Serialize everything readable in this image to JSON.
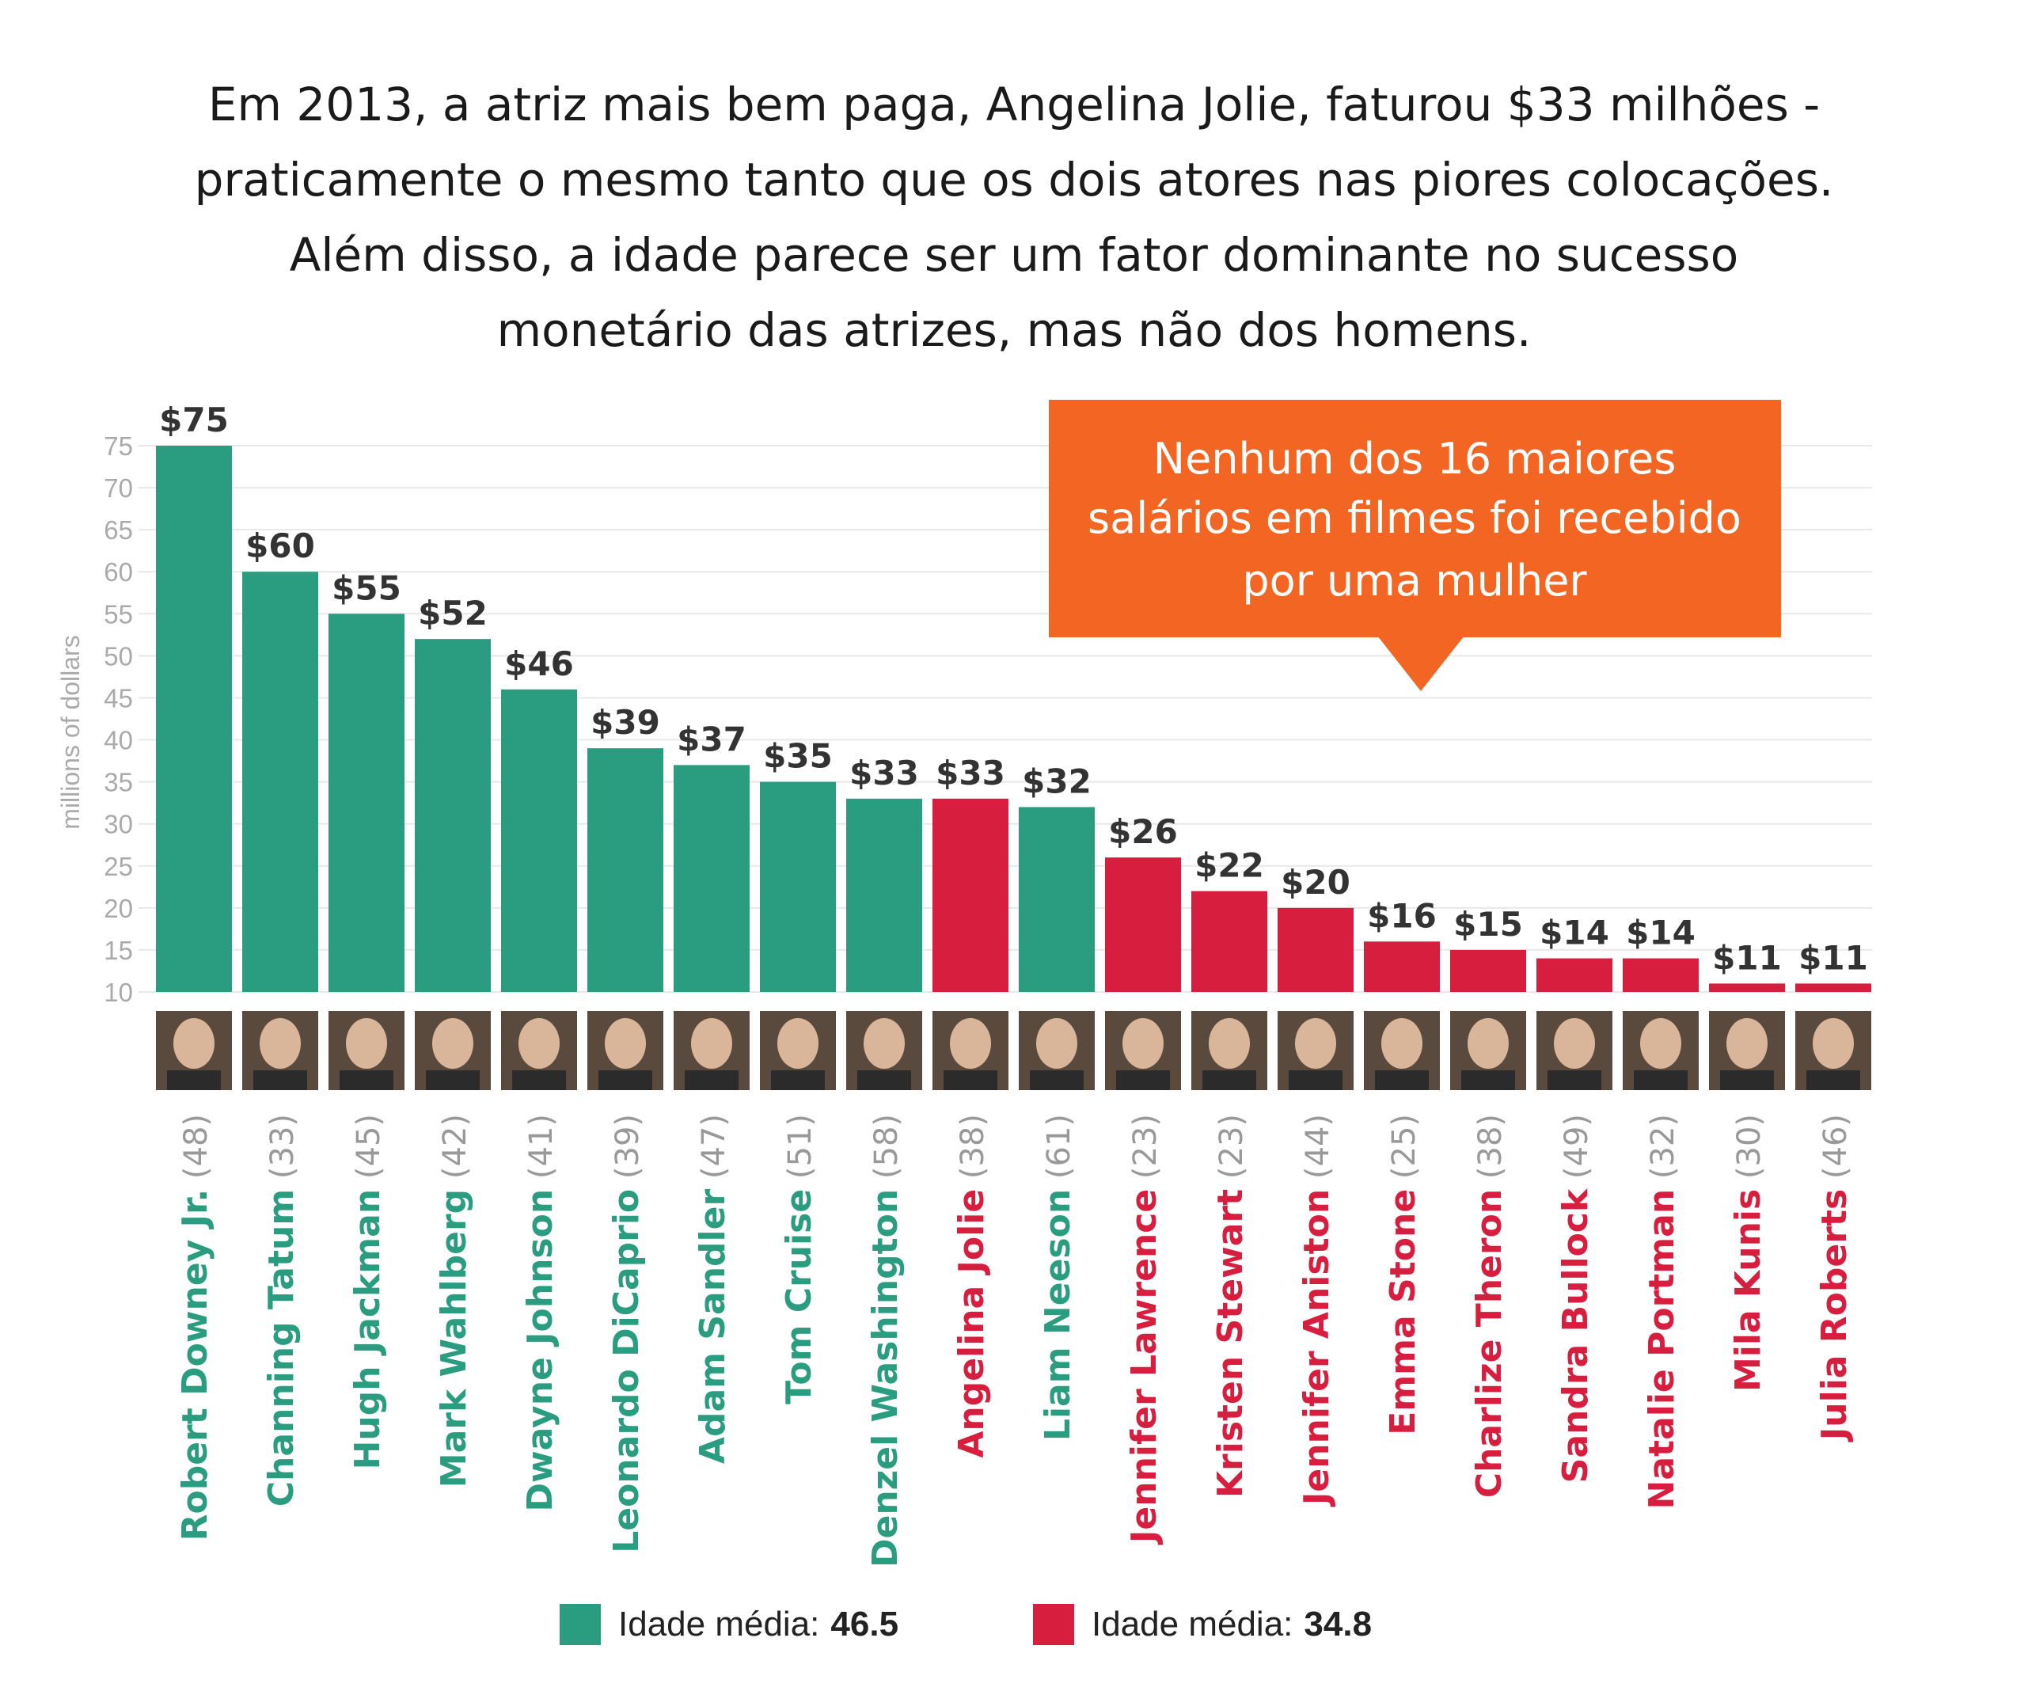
{
  "title_lines": [
    "Em 2013, a atriz mais bem paga, Angelina Jolie, faturou $33 milhões -",
    "praticamente o mesmo tanto que os dois atores nas piores colocações.",
    "Além disso, a idade parece ser um fator dominante no sucesso",
    "monetário das atrizes, mas não dos homens."
  ],
  "callout": {
    "lines": [
      "Nenhum dos 16 maiores",
      "salários em filmes foi recebido",
      "por uma mulher"
    ],
    "color": "#f26522"
  },
  "colors": {
    "male": "#2a9d80",
    "female": "#d81e3f",
    "age": "#999999",
    "grid": "#e8e8e8",
    "axis": "#aaaaaa"
  },
  "legend": [
    {
      "label": "Idade média:",
      "value": "46.5",
      "group": "male"
    },
    {
      "label": "Idade média:",
      "value": "34.8",
      "group": "female"
    }
  ],
  "chart_data": {
    "type": "bar",
    "ylabel": "millions of dollars",
    "ylim": [
      10,
      75
    ],
    "yticks": [
      75,
      70,
      65,
      60,
      55,
      50,
      45,
      40,
      35,
      30,
      25,
      20,
      15,
      10
    ],
    "bars": [
      {
        "name": "Robert Downey Jr.",
        "age": "(48)",
        "value": 75,
        "label": "$75",
        "group": "male"
      },
      {
        "name": "Channing Tatum",
        "age": "(33)",
        "value": 60,
        "label": "$60",
        "group": "male"
      },
      {
        "name": "Hugh Jackman",
        "age": "(45)",
        "value": 55,
        "label": "$55",
        "group": "male"
      },
      {
        "name": "Mark Wahlberg",
        "age": "(42)",
        "value": 52,
        "label": "$52",
        "group": "male"
      },
      {
        "name": "Dwayne Johnson",
        "age": "(41)",
        "value": 46,
        "label": "$46",
        "group": "male"
      },
      {
        "name": "Leonardo DiCaprio",
        "age": "(39)",
        "value": 39,
        "label": "$39",
        "group": "male"
      },
      {
        "name": "Adam Sandler",
        "age": "(47)",
        "value": 37,
        "label": "$37",
        "group": "male"
      },
      {
        "name": "Tom Cruise",
        "age": "(51)",
        "value": 35,
        "label": "$35",
        "group": "male"
      },
      {
        "name": "Denzel Washington",
        "age": "(58)",
        "value": 33,
        "label": "$33",
        "group": "male"
      },
      {
        "name": "Angelina Jolie",
        "age": "(38)",
        "value": 33,
        "label": "$33",
        "group": "female"
      },
      {
        "name": "Liam Neeson",
        "age": "(61)",
        "value": 32,
        "label": "$32",
        "group": "male"
      },
      {
        "name": "Jennifer Lawrence",
        "age": "(23)",
        "value": 26,
        "label": "$26",
        "group": "female"
      },
      {
        "name": "Kristen Stewart",
        "age": "(23)",
        "value": 22,
        "label": "$22",
        "group": "female"
      },
      {
        "name": "Jennifer Aniston",
        "age": "(44)",
        "value": 20,
        "label": "$20",
        "group": "female"
      },
      {
        "name": "Emma Stone",
        "age": "(25)",
        "value": 16,
        "label": "$16",
        "group": "female"
      },
      {
        "name": "Charlize Theron",
        "age": "(38)",
        "value": 15,
        "label": "$15",
        "group": "female"
      },
      {
        "name": "Sandra Bullock",
        "age": "(49)",
        "value": 14,
        "label": "$14",
        "group": "female"
      },
      {
        "name": "Natalie Portman",
        "age": "(32)",
        "value": 14,
        "label": "$14",
        "group": "female"
      },
      {
        "name": "Mila Kunis",
        "age": "(30)",
        "value": 11,
        "label": "$11",
        "group": "female"
      },
      {
        "name": "Julia Roberts",
        "age": "(46)",
        "value": 11,
        "label": "$11",
        "group": "female"
      }
    ]
  }
}
